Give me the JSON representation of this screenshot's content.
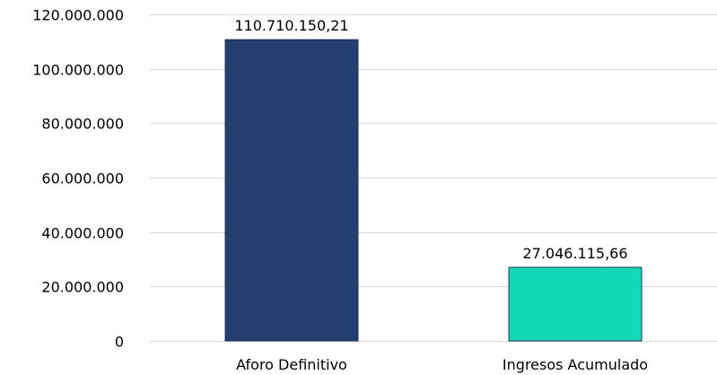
{
  "chart_data": {
    "type": "bar",
    "categories": [
      "Aforo Definitivo",
      "Ingresos Acumulado"
    ],
    "values": [
      110710150.21,
      27046115.66
    ],
    "data_labels": [
      "110.710.150,21",
      "27.046.115,66"
    ],
    "colors": [
      "#243f6e",
      "#14d9b8"
    ],
    "ylim": [
      0,
      120000000
    ],
    "yticks": [
      0,
      20000000,
      40000000,
      60000000,
      80000000,
      100000000,
      120000000
    ],
    "ytick_labels": [
      "0",
      "20.000.000",
      "40.000.000",
      "60.000.000",
      "80.000.000",
      "100.000.000",
      "120.000.000"
    ],
    "grid": true,
    "legend": false
  }
}
